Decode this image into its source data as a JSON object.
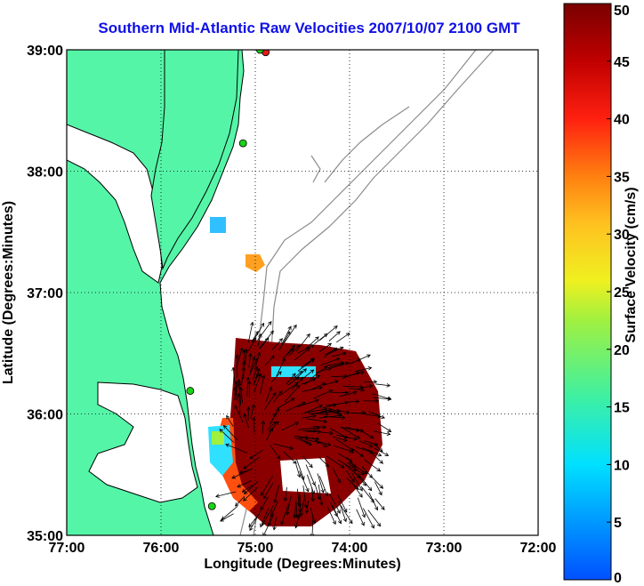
{
  "map": {
    "title": "Southern Mid-Atlantic Raw Velocities 2007/10/07 2100 GMT",
    "xlabel": "Longitude (Degrees:Minutes)",
    "ylabel": "Latitude (Degrees:Minutes)",
    "lon_range": [
      -77,
      -72
    ],
    "lat_range": [
      35,
      39
    ],
    "lon_ticks": [
      {
        "value": -77,
        "label": "77:00"
      },
      {
        "value": -76,
        "label": "76:00"
      },
      {
        "value": -75,
        "label": "75:00"
      },
      {
        "value": -74,
        "label": "74:00"
      },
      {
        "value": -73,
        "label": "73:00"
      },
      {
        "value": -72,
        "label": "72:00"
      }
    ],
    "lat_ticks": [
      {
        "value": 39,
        "label": "39:00"
      },
      {
        "value": 38,
        "label": "38:00"
      },
      {
        "value": 37,
        "label": "37:00"
      },
      {
        "value": 36,
        "label": "36:00"
      },
      {
        "value": 35,
        "label": "35:00"
      }
    ],
    "grid": "dotted",
    "colors": {
      "land": "#55f5a8",
      "coastline": "#000000",
      "isobath": "#8c8c8c",
      "title": "#1010e6",
      "station": "#19d419",
      "station_active": "#e61919"
    },
    "stations": [
      {
        "lon": -74.89,
        "lat": 38.98,
        "state": "active"
      },
      {
        "lon": -74.95,
        "lat": 39.0,
        "state": "normal"
      },
      {
        "lon": -75.13,
        "lat": 38.23,
        "state": "normal"
      },
      {
        "lon": -75.69,
        "lat": 36.19,
        "state": "normal"
      },
      {
        "lon": -75.46,
        "lat": 35.24,
        "state": "normal"
      }
    ]
  },
  "colorbar": {
    "label": "Surface Velocity (cm/s)",
    "min": 0,
    "max": 50,
    "ticks": [
      "0",
      "5",
      "10",
      "15",
      "20",
      "25",
      "30",
      "35",
      "40",
      "45",
      "50"
    ],
    "placement": "right"
  }
}
